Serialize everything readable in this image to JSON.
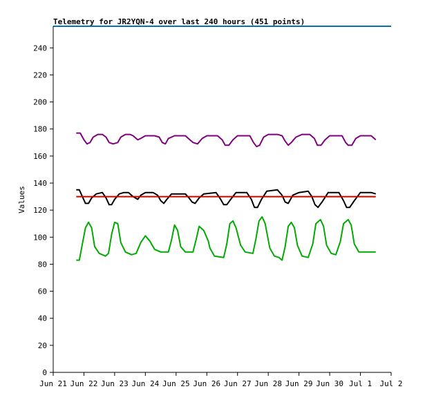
{
  "chart_data": {
    "type": "line",
    "title": "Telemetry for JR2YQN-4 over last 240 hours (451 points)",
    "xlabel": "",
    "ylabel": "Values",
    "ylim": [
      0,
      256
    ],
    "xlim": [
      "Jun 21",
      "Jul 2"
    ],
    "yticks": [
      0,
      20,
      40,
      60,
      80,
      100,
      120,
      140,
      160,
      180,
      200,
      220,
      240
    ],
    "xticks": [
      "Jun 21",
      "Jun 22",
      "Jun 23",
      "Jun 24",
      "Jun 25",
      "Jun 26",
      "Jun 27",
      "Jun 28",
      "Jun 29",
      "Jun 30",
      "Jul 1",
      "Jul 2"
    ],
    "grid": false,
    "legend": "none",
    "top_line": {
      "value": 256,
      "color": "#0077aa"
    },
    "series": [
      {
        "color": "#800080",
        "points": [
          [
            0.75,
            177
          ],
          [
            0.88,
            177
          ],
          [
            1.0,
            172
          ],
          [
            1.1,
            169
          ],
          [
            1.2,
            170
          ],
          [
            1.3,
            174
          ],
          [
            1.45,
            176
          ],
          [
            1.6,
            176
          ],
          [
            1.72,
            174
          ],
          [
            1.82,
            170
          ],
          [
            1.95,
            169
          ],
          [
            2.1,
            170
          ],
          [
            2.2,
            174
          ],
          [
            2.35,
            176
          ],
          [
            2.5,
            176
          ],
          [
            2.6,
            175
          ],
          [
            2.75,
            172
          ],
          [
            2.85,
            173
          ],
          [
            3.0,
            175
          ],
          [
            3.3,
            175
          ],
          [
            3.45,
            174
          ],
          [
            3.55,
            170
          ],
          [
            3.65,
            169
          ],
          [
            3.75,
            173
          ],
          [
            3.95,
            175
          ],
          [
            4.3,
            175
          ],
          [
            4.45,
            172
          ],
          [
            4.55,
            170
          ],
          [
            4.7,
            169
          ],
          [
            4.85,
            173
          ],
          [
            5.0,
            175
          ],
          [
            5.35,
            175
          ],
          [
            5.5,
            172
          ],
          [
            5.6,
            168
          ],
          [
            5.72,
            168
          ],
          [
            5.85,
            172
          ],
          [
            6.0,
            175
          ],
          [
            6.4,
            175
          ],
          [
            6.52,
            170
          ],
          [
            6.62,
            167
          ],
          [
            6.72,
            168
          ],
          [
            6.85,
            174
          ],
          [
            7.0,
            176
          ],
          [
            7.3,
            176
          ],
          [
            7.45,
            175
          ],
          [
            7.55,
            171
          ],
          [
            7.65,
            168
          ],
          [
            7.75,
            170
          ],
          [
            7.9,
            174
          ],
          [
            8.1,
            176
          ],
          [
            8.35,
            176
          ],
          [
            8.5,
            173
          ],
          [
            8.6,
            168
          ],
          [
            8.72,
            168
          ],
          [
            8.85,
            172
          ],
          [
            9.0,
            175
          ],
          [
            9.4,
            175
          ],
          [
            9.52,
            170
          ],
          [
            9.6,
            168
          ],
          [
            9.72,
            168
          ],
          [
            9.85,
            173
          ],
          [
            10.0,
            175
          ],
          [
            10.35,
            175
          ],
          [
            10.5,
            172
          ]
        ]
      },
      {
        "color": "#000000",
        "points": [
          [
            0.75,
            135
          ],
          [
            0.85,
            135
          ],
          [
            0.95,
            130
          ],
          [
            1.05,
            125
          ],
          [
            1.15,
            125
          ],
          [
            1.25,
            129
          ],
          [
            1.4,
            132
          ],
          [
            1.6,
            133
          ],
          [
            1.72,
            129
          ],
          [
            1.82,
            124
          ],
          [
            1.9,
            124
          ],
          [
            2.0,
            128
          ],
          [
            2.15,
            132
          ],
          [
            2.3,
            133
          ],
          [
            2.45,
            133
          ],
          [
            2.6,
            130
          ],
          [
            2.75,
            128
          ],
          [
            2.85,
            131
          ],
          [
            3.0,
            133
          ],
          [
            3.25,
            133
          ],
          [
            3.4,
            131
          ],
          [
            3.5,
            127
          ],
          [
            3.6,
            125
          ],
          [
            3.7,
            128
          ],
          [
            3.85,
            132
          ],
          [
            4.3,
            132
          ],
          [
            4.42,
            129
          ],
          [
            4.52,
            126
          ],
          [
            4.62,
            125
          ],
          [
            4.75,
            129
          ],
          [
            4.9,
            132
          ],
          [
            5.3,
            133
          ],
          [
            5.45,
            128
          ],
          [
            5.55,
            124
          ],
          [
            5.65,
            124
          ],
          [
            5.78,
            128
          ],
          [
            5.95,
            133
          ],
          [
            6.3,
            133
          ],
          [
            6.45,
            128
          ],
          [
            6.55,
            122
          ],
          [
            6.65,
            122
          ],
          [
            6.78,
            128
          ],
          [
            6.95,
            134
          ],
          [
            7.3,
            135
          ],
          [
            7.45,
            131
          ],
          [
            7.55,
            126
          ],
          [
            7.65,
            125
          ],
          [
            7.8,
            131
          ],
          [
            8.0,
            133
          ],
          [
            8.3,
            134
          ],
          [
            8.42,
            130
          ],
          [
            8.52,
            124
          ],
          [
            8.62,
            122
          ],
          [
            8.75,
            126
          ],
          [
            8.95,
            133
          ],
          [
            9.3,
            133
          ],
          [
            9.45,
            127
          ],
          [
            9.55,
            122
          ],
          [
            9.65,
            122
          ],
          [
            9.8,
            127
          ],
          [
            10.0,
            133
          ],
          [
            10.35,
            133
          ],
          [
            10.5,
            132
          ]
        ]
      },
      {
        "color": "#cc0000",
        "points": [
          [
            0.75,
            130
          ],
          [
            10.5,
            130
          ]
        ]
      },
      {
        "color": "#00aa00",
        "points": [
          [
            0.75,
            83
          ],
          [
            0.85,
            83
          ],
          [
            0.95,
            95
          ],
          [
            1.05,
            107
          ],
          [
            1.15,
            111
          ],
          [
            1.25,
            107
          ],
          [
            1.35,
            93
          ],
          [
            1.5,
            88
          ],
          [
            1.7,
            86
          ],
          [
            1.8,
            88
          ],
          [
            1.9,
            102
          ],
          [
            2.0,
            111
          ],
          [
            2.1,
            110
          ],
          [
            2.2,
            96
          ],
          [
            2.35,
            89
          ],
          [
            2.55,
            87
          ],
          [
            2.7,
            88
          ],
          [
            2.85,
            96
          ],
          [
            3.0,
            101
          ],
          [
            3.15,
            97
          ],
          [
            3.3,
            91
          ],
          [
            3.5,
            89
          ],
          [
            3.75,
            89
          ],
          [
            3.85,
            98
          ],
          [
            3.95,
            109
          ],
          [
            4.05,
            105
          ],
          [
            4.15,
            93
          ],
          [
            4.3,
            89
          ],
          [
            4.55,
            89
          ],
          [
            4.65,
            98
          ],
          [
            4.75,
            108
          ],
          [
            4.9,
            105
          ],
          [
            5.05,
            97
          ],
          [
            5.1,
            92
          ],
          [
            5.25,
            86
          ],
          [
            5.55,
            85
          ],
          [
            5.65,
            95
          ],
          [
            5.75,
            110
          ],
          [
            5.85,
            112
          ],
          [
            5.95,
            107
          ],
          [
            6.1,
            94
          ],
          [
            6.25,
            89
          ],
          [
            6.5,
            88
          ],
          [
            6.6,
            99
          ],
          [
            6.7,
            112
          ],
          [
            6.8,
            115
          ],
          [
            6.9,
            110
          ],
          [
            7.05,
            92
          ],
          [
            7.2,
            86
          ],
          [
            7.35,
            85
          ],
          [
            7.45,
            83
          ],
          [
            7.55,
            93
          ],
          [
            7.65,
            108
          ],
          [
            7.75,
            111
          ],
          [
            7.85,
            107
          ],
          [
            7.95,
            94
          ],
          [
            8.1,
            86
          ],
          [
            8.3,
            85
          ],
          [
            8.45,
            95
          ],
          [
            8.55,
            110
          ],
          [
            8.7,
            113
          ],
          [
            8.8,
            108
          ],
          [
            8.9,
            94
          ],
          [
            9.05,
            88
          ],
          [
            9.2,
            87
          ],
          [
            9.35,
            97
          ],
          [
            9.45,
            110
          ],
          [
            9.6,
            113
          ],
          [
            9.7,
            109
          ],
          [
            9.8,
            95
          ],
          [
            9.95,
            89
          ],
          [
            10.1,
            89
          ],
          [
            10.2,
            89
          ],
          [
            10.5,
            89
          ]
        ]
      }
    ]
  }
}
